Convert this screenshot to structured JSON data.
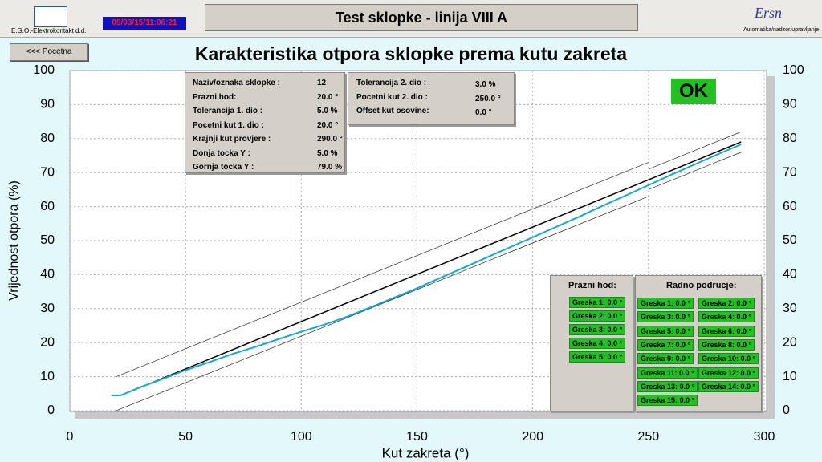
{
  "header": {
    "company": "E.G.O.-Elektrokontakt d.d.",
    "datetime": "09/03/15/11:06:21",
    "title": "Test sklopke - linija VIII A",
    "brand": "Ersn",
    "brand_tagline": "Automatika/nadzor/upravljanje"
  },
  "nav": {
    "back_button": "<<< Pocetna"
  },
  "status": "OK",
  "parameters": {
    "rows": [
      {
        "label": "Naziv/oznaka sklopke :",
        "value": "12"
      },
      {
        "label": "Prazni hod:",
        "value": "20.0 °"
      },
      {
        "label": "Tolerancija 1. dio :",
        "value": "5.0 %"
      },
      {
        "label": "Pocetni kut 1. dio :",
        "value": "20.0 °"
      },
      {
        "label": "Krajnji kut provjere :",
        "value": "290.0 °"
      },
      {
        "label": "Donja tocka Y :",
        "value": "5.0 %"
      },
      {
        "label": "Gornja tocka Y :",
        "value": "79.0 %"
      }
    ]
  },
  "parameters2": {
    "rows": [
      {
        "label": "Tolerancija 2. dio :",
        "value": "3.0 %"
      },
      {
        "label": "Pocetni kut 2. dio :",
        "value": "250.0 °"
      },
      {
        "label": "Offset kut osovine:",
        "value": "0.0 °"
      }
    ]
  },
  "prazni_hod": {
    "title": "Prazni hod:",
    "errors": [
      "Greska 1: 0.0 °",
      "Greska 2: 0.0 °",
      "Greska 3: 0.0 °",
      "Greska 4: 0.0 °",
      "Greska 5: 0.0 °"
    ]
  },
  "radno_podrucje": {
    "title": "Radno podrucje:",
    "errors": [
      "Greska 1: 0.0 °",
      "Greska 2: 0.0 °",
      "Greska 3: 0.0 °",
      "Greska 4: 0.0 °",
      "Greska 5: 0.0 °",
      "Greska 6: 0.0 °",
      "Greska 7: 0.0 °",
      "Greska 8: 0.0 °",
      "Greska 9: 0.0 °",
      "Greska 10: 0.0 °",
      "Greska 11: 0.0 °",
      "Greska 12: 0.0 °",
      "Greska 13: 0.0 °",
      "Greska 14: 0.0 °",
      "Greska 15: 0.0 °"
    ]
  },
  "chart_data": {
    "type": "line",
    "title": "Karakteristika otpora sklopke prema kutu zakreta",
    "x_label": "Kut zakreta (°)",
    "y_label": "Vrijednost otpora (%)",
    "xlim": [
      0,
      300
    ],
    "ylim": [
      0,
      100
    ],
    "xticks": [
      0,
      50,
      100,
      150,
      200,
      250,
      300
    ],
    "yticks": [
      0,
      10,
      20,
      30,
      40,
      50,
      60,
      70,
      80,
      90,
      100
    ],
    "grid": true,
    "series": [
      {
        "color": "#000000",
        "width": 1.5,
        "x": [
          18,
          22,
          290
        ],
        "values": [
          4.5,
          4.5,
          79
        ]
      },
      {
        "color": "#000000",
        "width": 0.6,
        "x": [
          20,
          250,
          250,
          250,
          290
        ],
        "values": [
          10,
          73,
          null,
          71,
          82
        ]
      },
      {
        "color": "#000000",
        "width": 0.6,
        "x": [
          20,
          250,
          250,
          250,
          290
        ],
        "values": [
          0,
          63,
          null,
          65,
          76
        ]
      },
      {
        "color": "#1aa8c8",
        "width": 2,
        "x": [
          18,
          22,
          30,
          40,
          50,
          60,
          70,
          80,
          90,
          100,
          110,
          120,
          130,
          140,
          150,
          160,
          170,
          180,
          190,
          200,
          210,
          220,
          230,
          240,
          250,
          260,
          270,
          280,
          290
        ],
        "values": [
          4.5,
          4.5,
          6.8,
          9.3,
          11.9,
          14.2,
          16.6,
          18.7,
          21,
          23.2,
          25.3,
          27.7,
          30.4,
          33.2,
          36,
          39,
          42,
          45,
          48,
          51,
          54,
          57,
          60.2,
          63.2,
          66.3,
          69.4,
          72.4,
          75.4,
          78.3
        ]
      }
    ]
  }
}
